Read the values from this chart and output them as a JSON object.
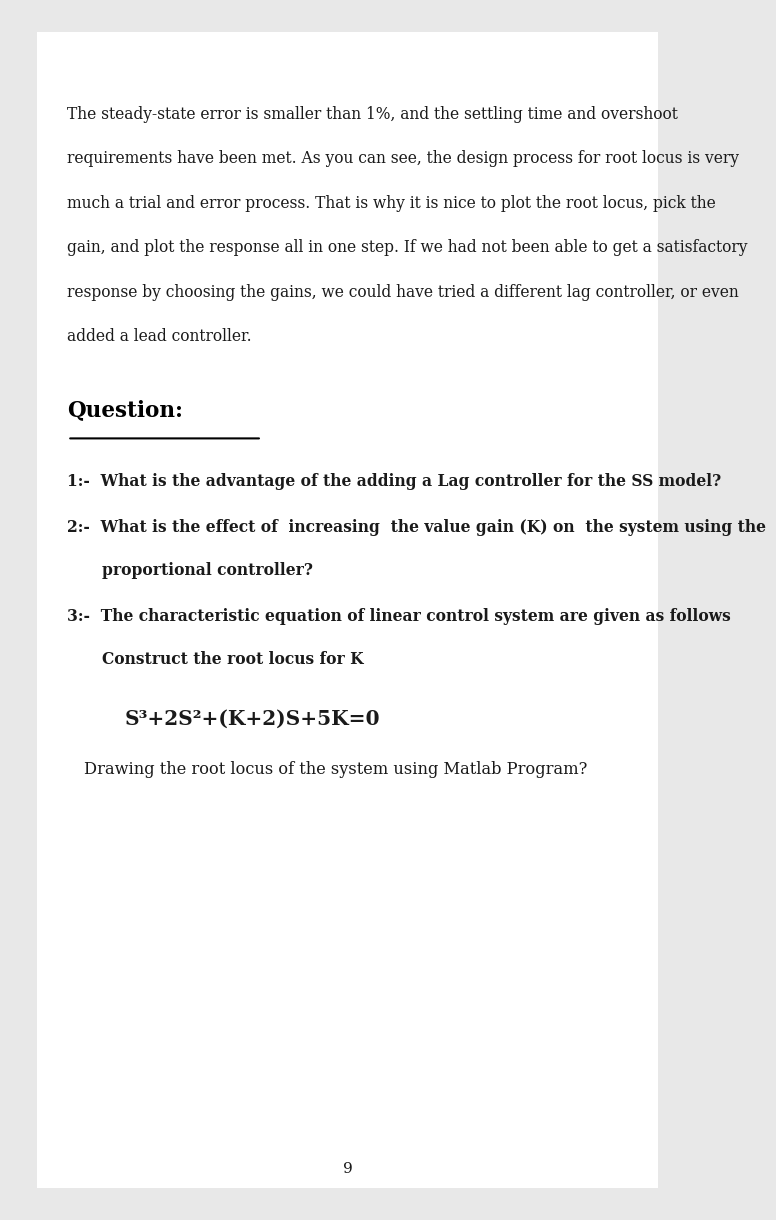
{
  "bg_color": "#e8e8e8",
  "page_bg": "#ffffff",
  "page_number": "9",
  "para_lines": [
    "The steady-state error is smaller than 1%, and the settling time and overshoot",
    "requirements have been met. As you can see, the design process for root locus is very",
    "much a trial and error process. That is why it is nice to plot the root locus, pick the",
    "gain, and plot the response all in one step. If we had not been able to get a satisfactory",
    "response by choosing the gains, we could have tried a different lag controller, or even",
    "added a lead controller."
  ],
  "section_title": "Question:",
  "q1": "1:-  What is the advantage of the adding a Lag controller for the SS model?",
  "q2_line1": "2:-  What is the effect of  increasing  the value gain (K) on  the system using the",
  "q2_line2": "proportional controller?",
  "q3_line1": "3:-  The characteristic equation of linear control system are given as follows",
  "q3_line2": "Construct the root locus for K",
  "equation": "S³+2S²+(K+2)S+5K=0",
  "drawing_line": "Drawing the root locus of the system using Matlab Program?",
  "text_color": "#1a1a1a",
  "title_color": "#000000",
  "font_size_body": 11.2,
  "font_size_title": 15.5,
  "font_size_q": 11.2,
  "font_size_eq": 14.5,
  "font_size_page": 11
}
